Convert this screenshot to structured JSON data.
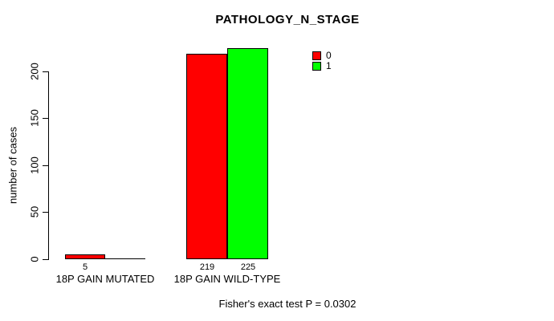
{
  "chart_data": {
    "type": "bar",
    "title": "PATHOLOGY_N_STAGE",
    "ylabel": "number of cases",
    "xlabel": "",
    "categories": [
      "18P GAIN MUTATED",
      "18P GAIN WILD-TYPE"
    ],
    "series": [
      {
        "name": "0",
        "color": "#FF0000",
        "values": [
          5,
          219
        ]
      },
      {
        "name": "1",
        "color": "#00FF00",
        "values": [
          0,
          225
        ]
      }
    ],
    "yticks": [
      0,
      50,
      100,
      150,
      200
    ],
    "ylim": [
      0,
      232
    ],
    "grid": false,
    "legend_position": "top-right",
    "bar_border_color": "#000000",
    "background_color": "#FFFFFF",
    "annotation": "Fisher's exact test P = 0.0302"
  }
}
